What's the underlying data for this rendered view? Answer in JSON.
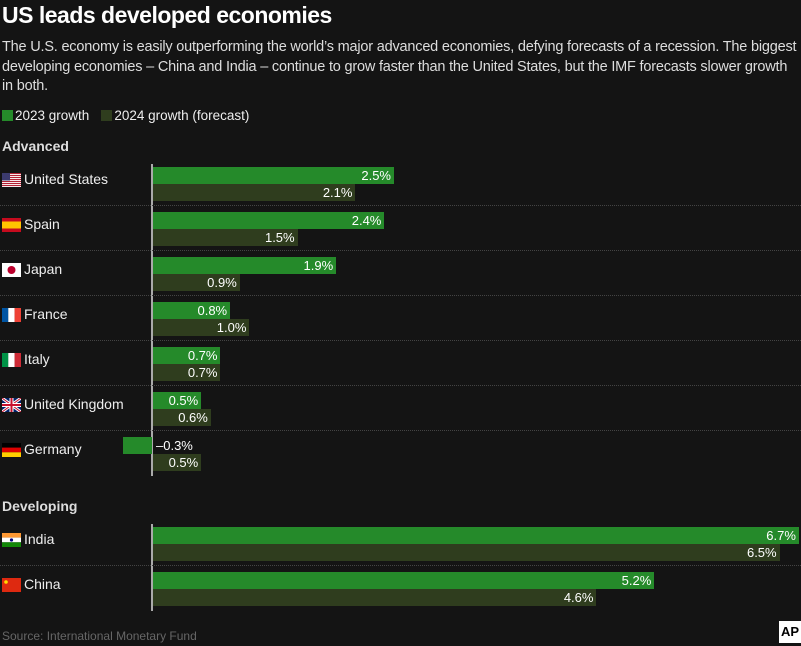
{
  "title": "US leads developed economies",
  "subtitle": "The U.S. economy is easily outperforming the world’s major advanced economies, defying forecasts of a recession. The biggest developing economies – China and India – continue to grow faster than the United States, but the IMF forecasts slower growth in both.",
  "source": "Source: International Monetary Fund",
  "logo": "AP",
  "colors": {
    "s2023": "#258a2a",
    "s2024": "#2f3d1e"
  },
  "chart_data": {
    "type": "bar",
    "orientation": "horizontal",
    "series": [
      {
        "name": "2023 growth"
      },
      {
        "name": "2024 growth (forecast)"
      }
    ],
    "groups": [
      {
        "label": "Advanced",
        "rows": [
          {
            "country": "United States",
            "flag": "us",
            "v2023": 2.5,
            "v2024": 2.1,
            "l2023": "2.5%",
            "l2024": "2.1%"
          },
          {
            "country": "Spain",
            "flag": "es",
            "v2023": 2.4,
            "v2024": 1.5,
            "l2023": "2.4%",
            "l2024": "1.5%"
          },
          {
            "country": "Japan",
            "flag": "jp",
            "v2023": 1.9,
            "v2024": 0.9,
            "l2023": "1.9%",
            "l2024": "0.9%"
          },
          {
            "country": "France",
            "flag": "fr",
            "v2023": 0.8,
            "v2024": 1.0,
            "l2023": "0.8%",
            "l2024": "1.0%"
          },
          {
            "country": "Italy",
            "flag": "it",
            "v2023": 0.7,
            "v2024": 0.7,
            "l2023": "0.7%",
            "l2024": "0.7%"
          },
          {
            "country": "United Kingdom",
            "flag": "gb",
            "v2023": 0.5,
            "v2024": 0.6,
            "l2023": "0.5%",
            "l2024": "0.6%"
          },
          {
            "country": "Germany",
            "flag": "de",
            "v2023": -0.3,
            "v2024": 0.5,
            "l2023": "–0.3%",
            "l2024": "0.5%"
          }
        ]
      },
      {
        "label": "Developing",
        "rows": [
          {
            "country": "India",
            "flag": "in",
            "v2023": 6.7,
            "v2024": 6.5,
            "l2023": "6.7%",
            "l2024": "6.5%"
          },
          {
            "country": "China",
            "flag": "cn",
            "v2023": 5.2,
            "v2024": 4.6,
            "l2023": "5.2%",
            "l2024": "4.6%"
          }
        ]
      }
    ]
  }
}
